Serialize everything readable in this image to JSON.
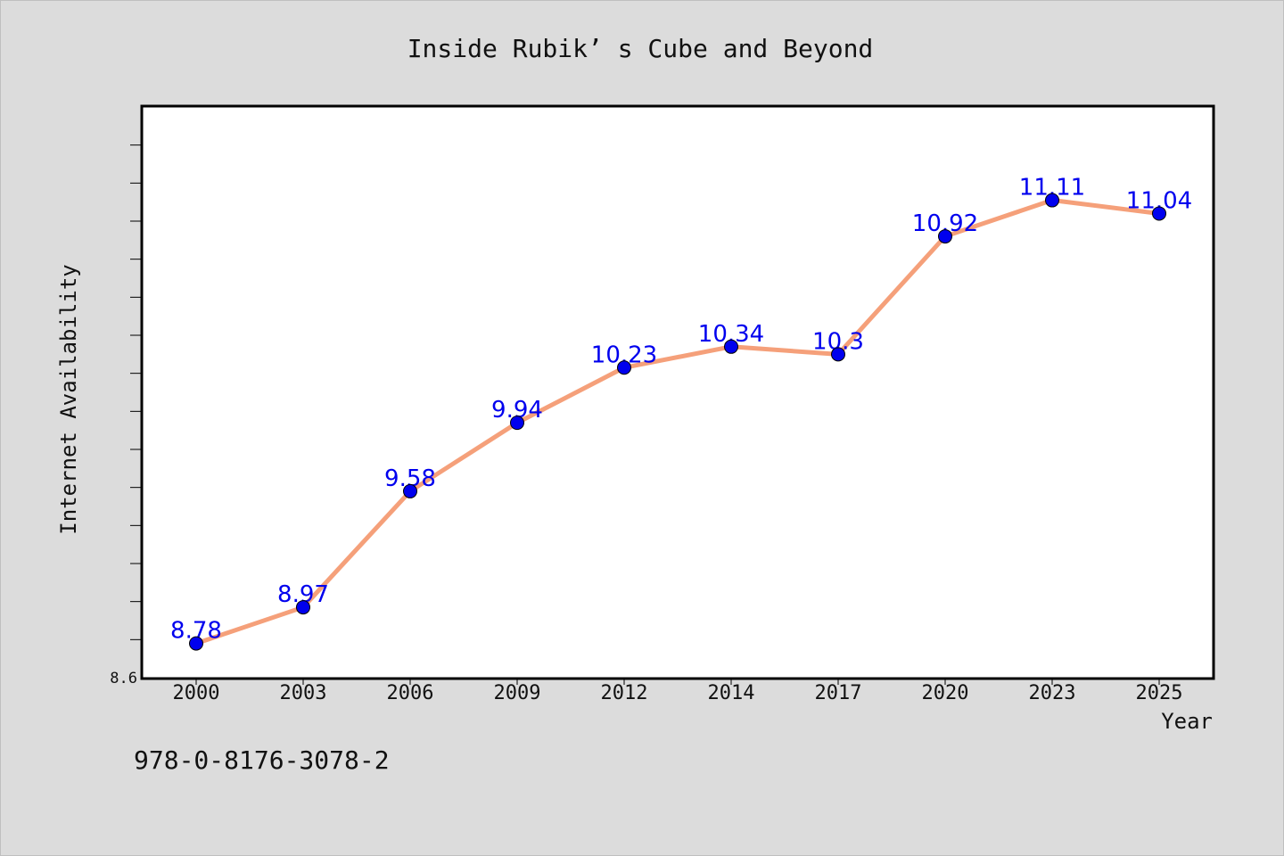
{
  "chart_data": {
    "type": "line",
    "title": "Inside Rubik’ s Cube and Beyond",
    "xlabel": "Year",
    "ylabel": "Internet Availability",
    "categories": [
      "2000",
      "2003",
      "2006",
      "2009",
      "2012",
      "2014",
      "2017",
      "2020",
      "2023",
      "2025"
    ],
    "series": [
      {
        "values": [
          8.78,
          8.97,
          9.58,
          9.94,
          10.23,
          10.34,
          10.3,
          10.92,
          11.11,
          11.04
        ],
        "labels": [
          "8.78",
          "8.97",
          "9.58",
          "9.94",
          "10.23",
          "10.34",
          "10.3",
          "10.92",
          "11.11",
          "11.04"
        ]
      }
    ],
    "ylim": [
      8.6,
      11.6
    ],
    "yticks": [
      {
        "value": 8.6,
        "label": "8.6"
      }
    ],
    "y_minor_step": 0.2,
    "grid": false,
    "line_color": "#f5a07a",
    "marker_color": "#0000ee",
    "label_color": "#0000ee"
  },
  "footer": {
    "isbn": "978-0-8176-3078-2"
  }
}
